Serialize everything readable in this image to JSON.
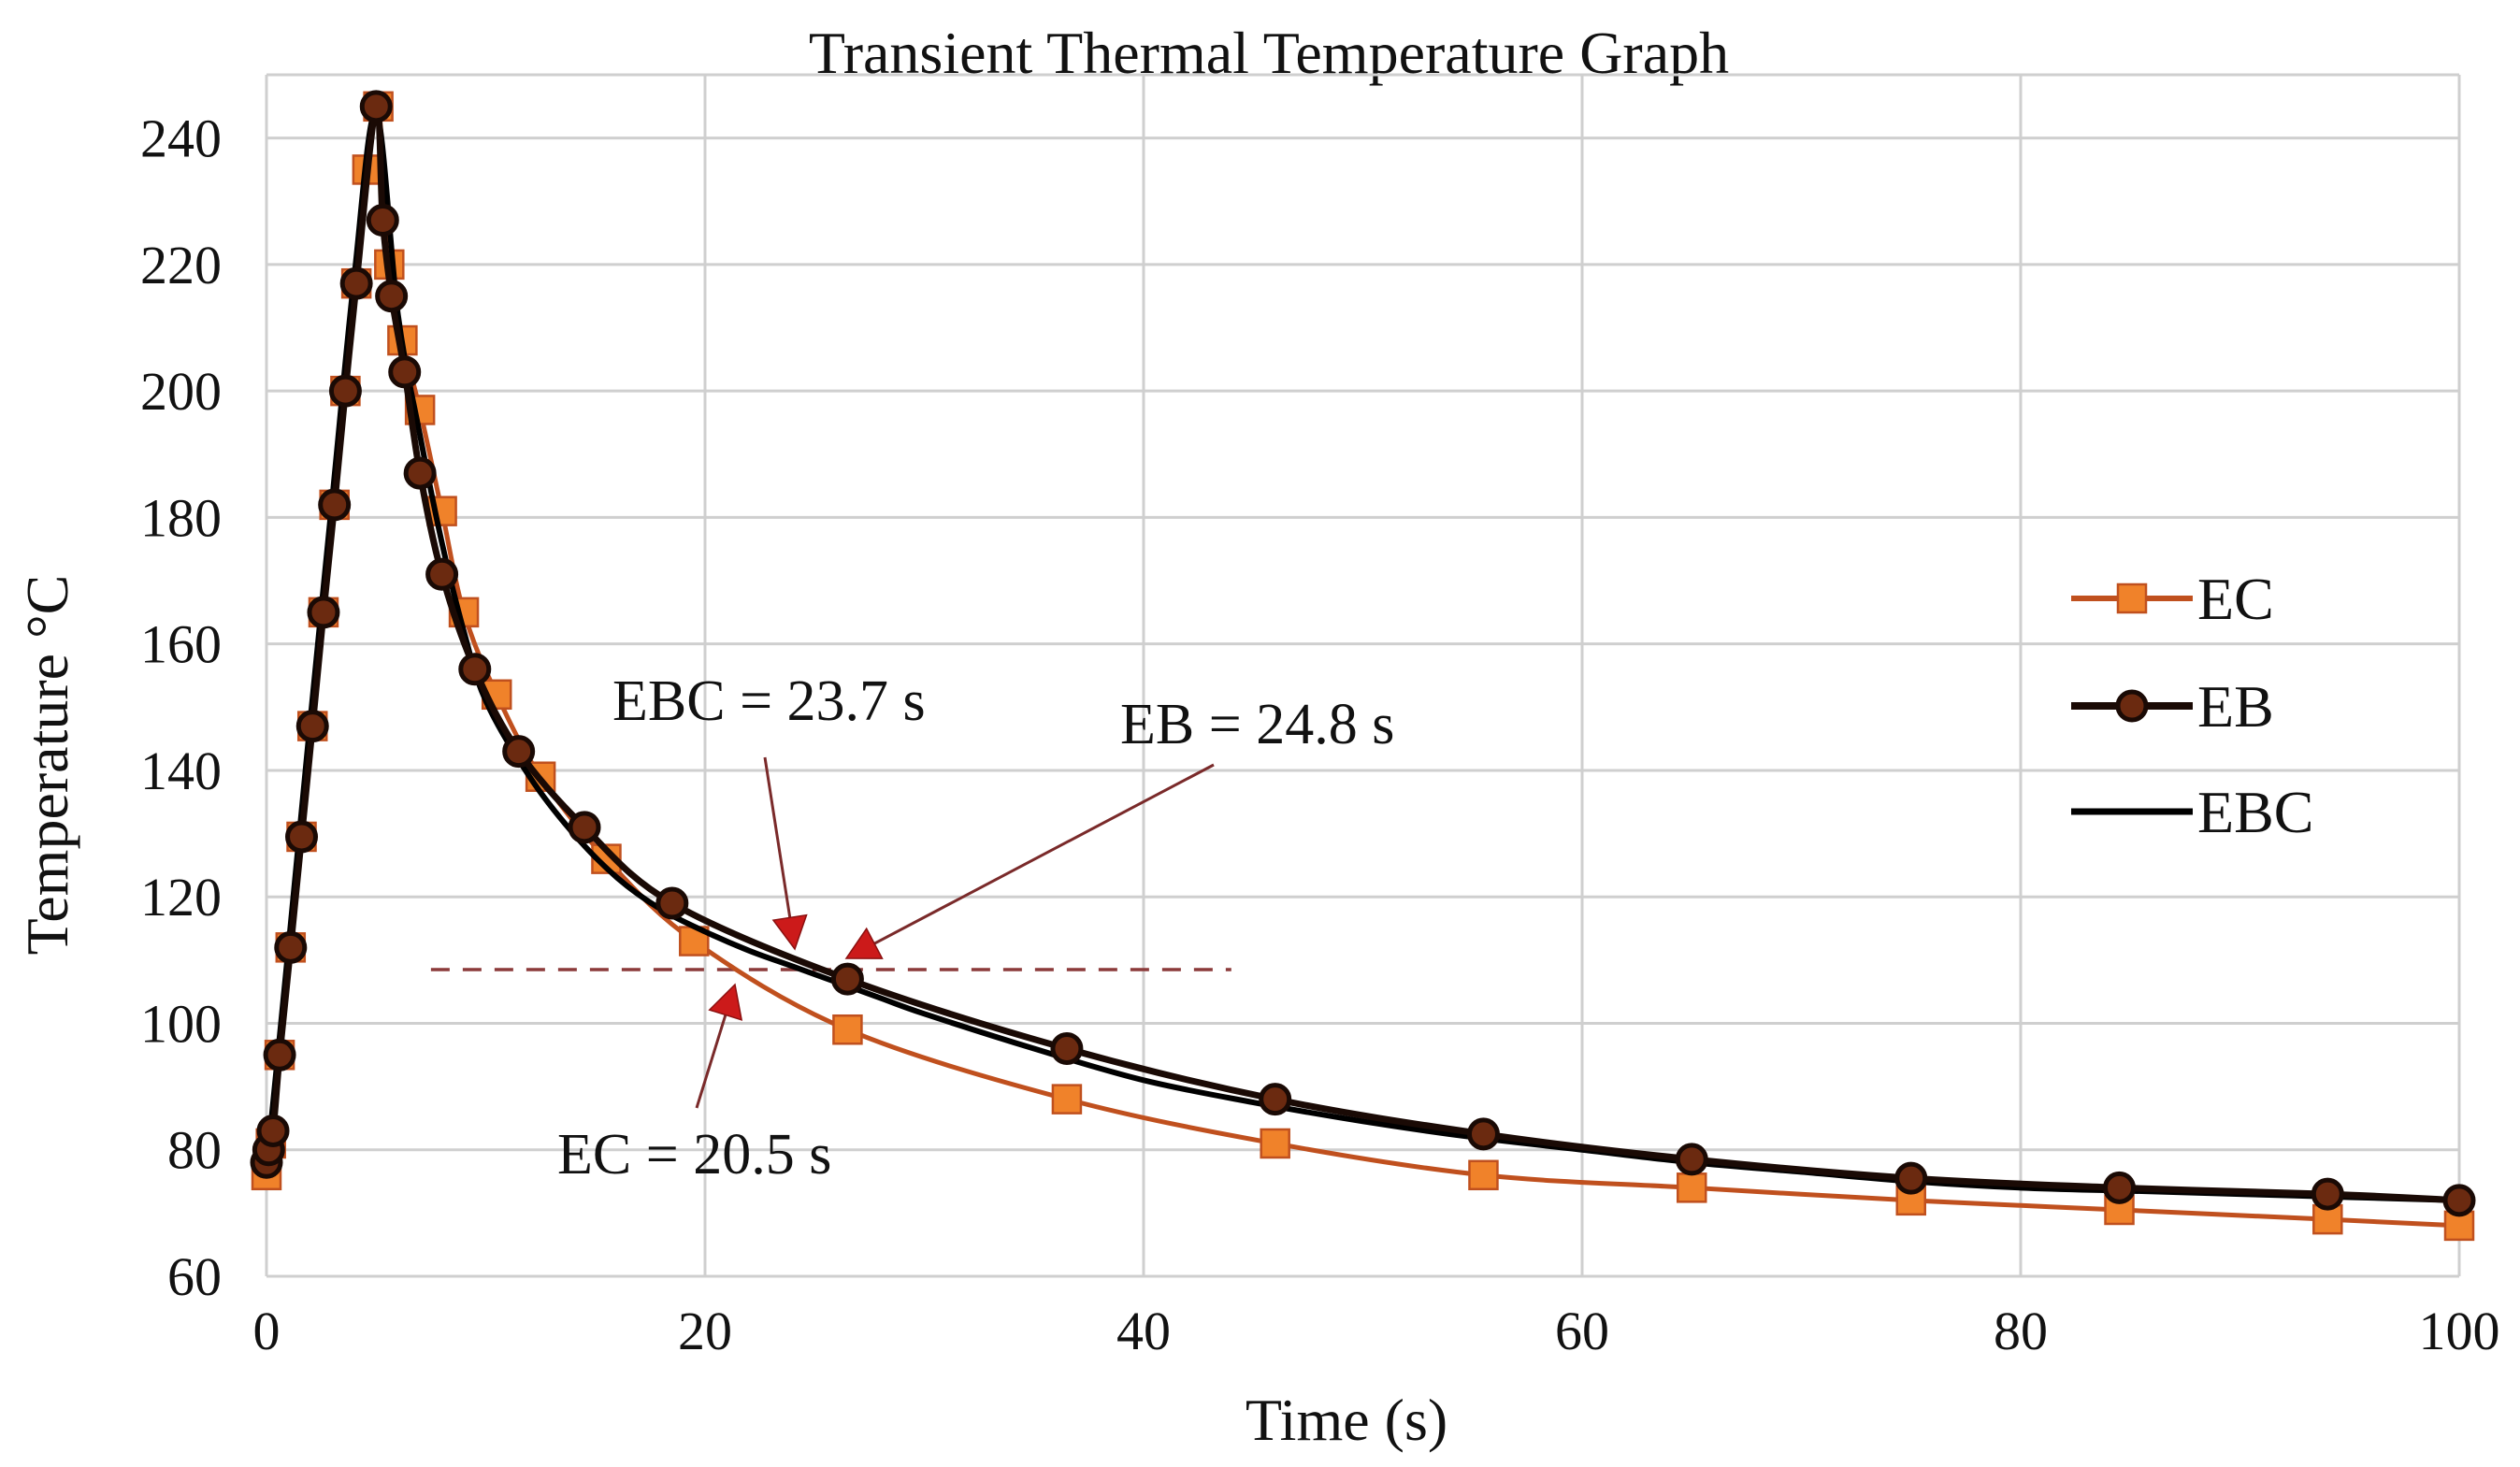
{
  "chart_data": {
    "type": "line",
    "title": "Transient Thermal Temperature Graph",
    "xlabel": "Time (s)",
    "ylabel": "Temperature °C",
    "xlim": [
      0,
      100
    ],
    "ylim": [
      60,
      250
    ],
    "x_ticks": [
      0,
      20,
      40,
      60,
      80,
      100
    ],
    "y_ticks": [
      60,
      80,
      100,
      120,
      140,
      160,
      180,
      200,
      220,
      240
    ],
    "x_tick_labels": [
      "0",
      "20",
      "40",
      "60",
      "80",
      "100"
    ],
    "y_tick_labels": [
      "60",
      "80",
      "100",
      "120",
      "140",
      "160",
      "180",
      "200",
      "220",
      "240"
    ],
    "grid": true,
    "legend_position": "right",
    "colors": {
      "EC": "#c0501e",
      "EC_marker": "#f0822a",
      "EB": "#1a0a05",
      "EB_marker": "#6b2a10",
      "EBC": "#000000",
      "annotation": "#7a2a2a",
      "arrowhead": "#cc1a1a",
      "threshold": "#8b3a3a"
    },
    "series": [
      {
        "name": "EC",
        "marker": "square",
        "x": [
          0,
          0.2,
          0.6,
          1.1,
          1.6,
          2.1,
          2.6,
          3.1,
          3.6,
          4.1,
          4.6,
          5.1,
          5.6,
          6.2,
          7,
          8,
          9,
          10.5,
          12.5,
          15.5,
          19.5,
          26.5,
          36.5,
          46,
          55.5,
          65,
          75,
          84.5,
          94,
          100
        ],
        "y": [
          76,
          81,
          95,
          112,
          129.5,
          147,
          165,
          182,
          200,
          217,
          235,
          245,
          220,
          208,
          197,
          181,
          165,
          152,
          139,
          126,
          113,
          99,
          88,
          81,
          76,
          74,
          72,
          70.5,
          69,
          68
        ]
      },
      {
        "name": "EB",
        "marker": "circle",
        "x": [
          0,
          0.1,
          0.3,
          0.6,
          1.1,
          1.6,
          2.1,
          2.6,
          3.1,
          3.6,
          4.1,
          5,
          5.3,
          5.7,
          6.3,
          7,
          8,
          9.5,
          11.5,
          14.5,
          18.5,
          26.5,
          36.5,
          46,
          55.5,
          65,
          75,
          84.5,
          94,
          100
        ],
        "y": [
          78,
          80,
          83,
          95,
          112,
          129.5,
          147,
          165,
          182,
          200,
          217,
          245,
          227,
          215,
          203,
          187,
          171,
          156,
          143,
          131,
          119,
          107,
          96,
          88,
          82.5,
          78.5,
          75.5,
          74,
          73,
          72
        ]
      },
      {
        "name": "EBC",
        "marker": "none",
        "x": [
          0,
          1,
          2,
          3,
          4,
          5,
          6,
          7,
          8,
          9,
          10,
          12,
          14,
          16,
          18,
          20,
          22,
          24,
          26,
          28,
          30,
          35,
          40,
          45,
          50,
          55,
          60,
          65,
          70,
          75,
          80,
          85,
          90,
          95,
          100
        ],
        "y": [
          77,
          112,
          148,
          183,
          218,
          244,
          212,
          193,
          176,
          162,
          151,
          139,
          130,
          123,
          118,
          114.5,
          111.5,
          109,
          106.5,
          104,
          101.5,
          96,
          91,
          87.5,
          84.5,
          82,
          80,
          78,
          76.5,
          75,
          74,
          73.5,
          73,
          72.5,
          72
        ]
      }
    ],
    "threshold_line": {
      "y": 108.5,
      "x_start": 7.5,
      "x_end": 44,
      "style": "dashed"
    },
    "annotations": [
      {
        "label": "EBC = 23.7 s",
        "x": 23.7,
        "y": 110,
        "text_anchor_x": 21.5,
        "text_anchor_y": 124
      },
      {
        "label": "EB = 24.8 s",
        "x": 26.5,
        "y": 108.5,
        "text_anchor_x": 43.5,
        "text_anchor_y": 121
      },
      {
        "label": "EC = 20.5 s",
        "x": 21.5,
        "y": 108,
        "text_anchor_x": 20,
        "text_anchor_y": 80
      }
    ]
  }
}
